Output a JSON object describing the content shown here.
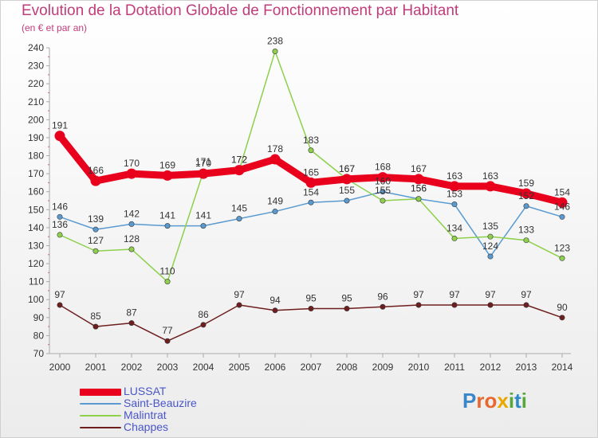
{
  "header": {
    "title": "Evolution de la Dotation Globale de Fonctionnement par Habitant",
    "subtitle": "(en € et par an)"
  },
  "logo": {
    "text": "Proxiti",
    "colors": [
      "#3a86c8",
      "#e8672c",
      "#e8672c",
      "#e8a800",
      "#56a83a",
      "#2c8ac8",
      "#56a83a"
    ]
  },
  "chart_data": {
    "type": "line",
    "x": [
      2000,
      2001,
      2002,
      2003,
      2004,
      2005,
      2006,
      2007,
      2008,
      2009,
      2010,
      2011,
      2012,
      2013,
      2014
    ],
    "ylim": [
      70,
      240
    ],
    "yticks": [
      70,
      80,
      90,
      100,
      110,
      120,
      130,
      140,
      150,
      160,
      170,
      180,
      190,
      200,
      210,
      220,
      230,
      240
    ],
    "grid": false,
    "legend_position": "bottom-left",
    "series": [
      {
        "name": "LUSSAT",
        "color": "#e8001c",
        "emphasis": true,
        "values": [
          191,
          166,
          170,
          169,
          170,
          172,
          178,
          165,
          167,
          168,
          167,
          163,
          163,
          159,
          154
        ]
      },
      {
        "name": "Saint-Beauzire",
        "color": "#5a9ad0",
        "values": [
          146,
          139,
          142,
          141,
          141,
          145,
          149,
          154,
          155,
          160,
          156,
          153,
          124,
          152,
          146
        ]
      },
      {
        "name": "Malintrat",
        "color": "#8ed04c",
        "values": [
          136,
          127,
          128,
          110,
          171,
          172,
          238,
          183,
          167,
          155,
          156,
          134,
          135,
          133,
          123
        ]
      },
      {
        "name": "Chappes",
        "color": "#6e1e1e",
        "values": [
          97,
          85,
          87,
          77,
          86,
          97,
          94,
          95,
          95,
          96,
          97,
          97,
          97,
          97,
          90
        ]
      }
    ]
  }
}
